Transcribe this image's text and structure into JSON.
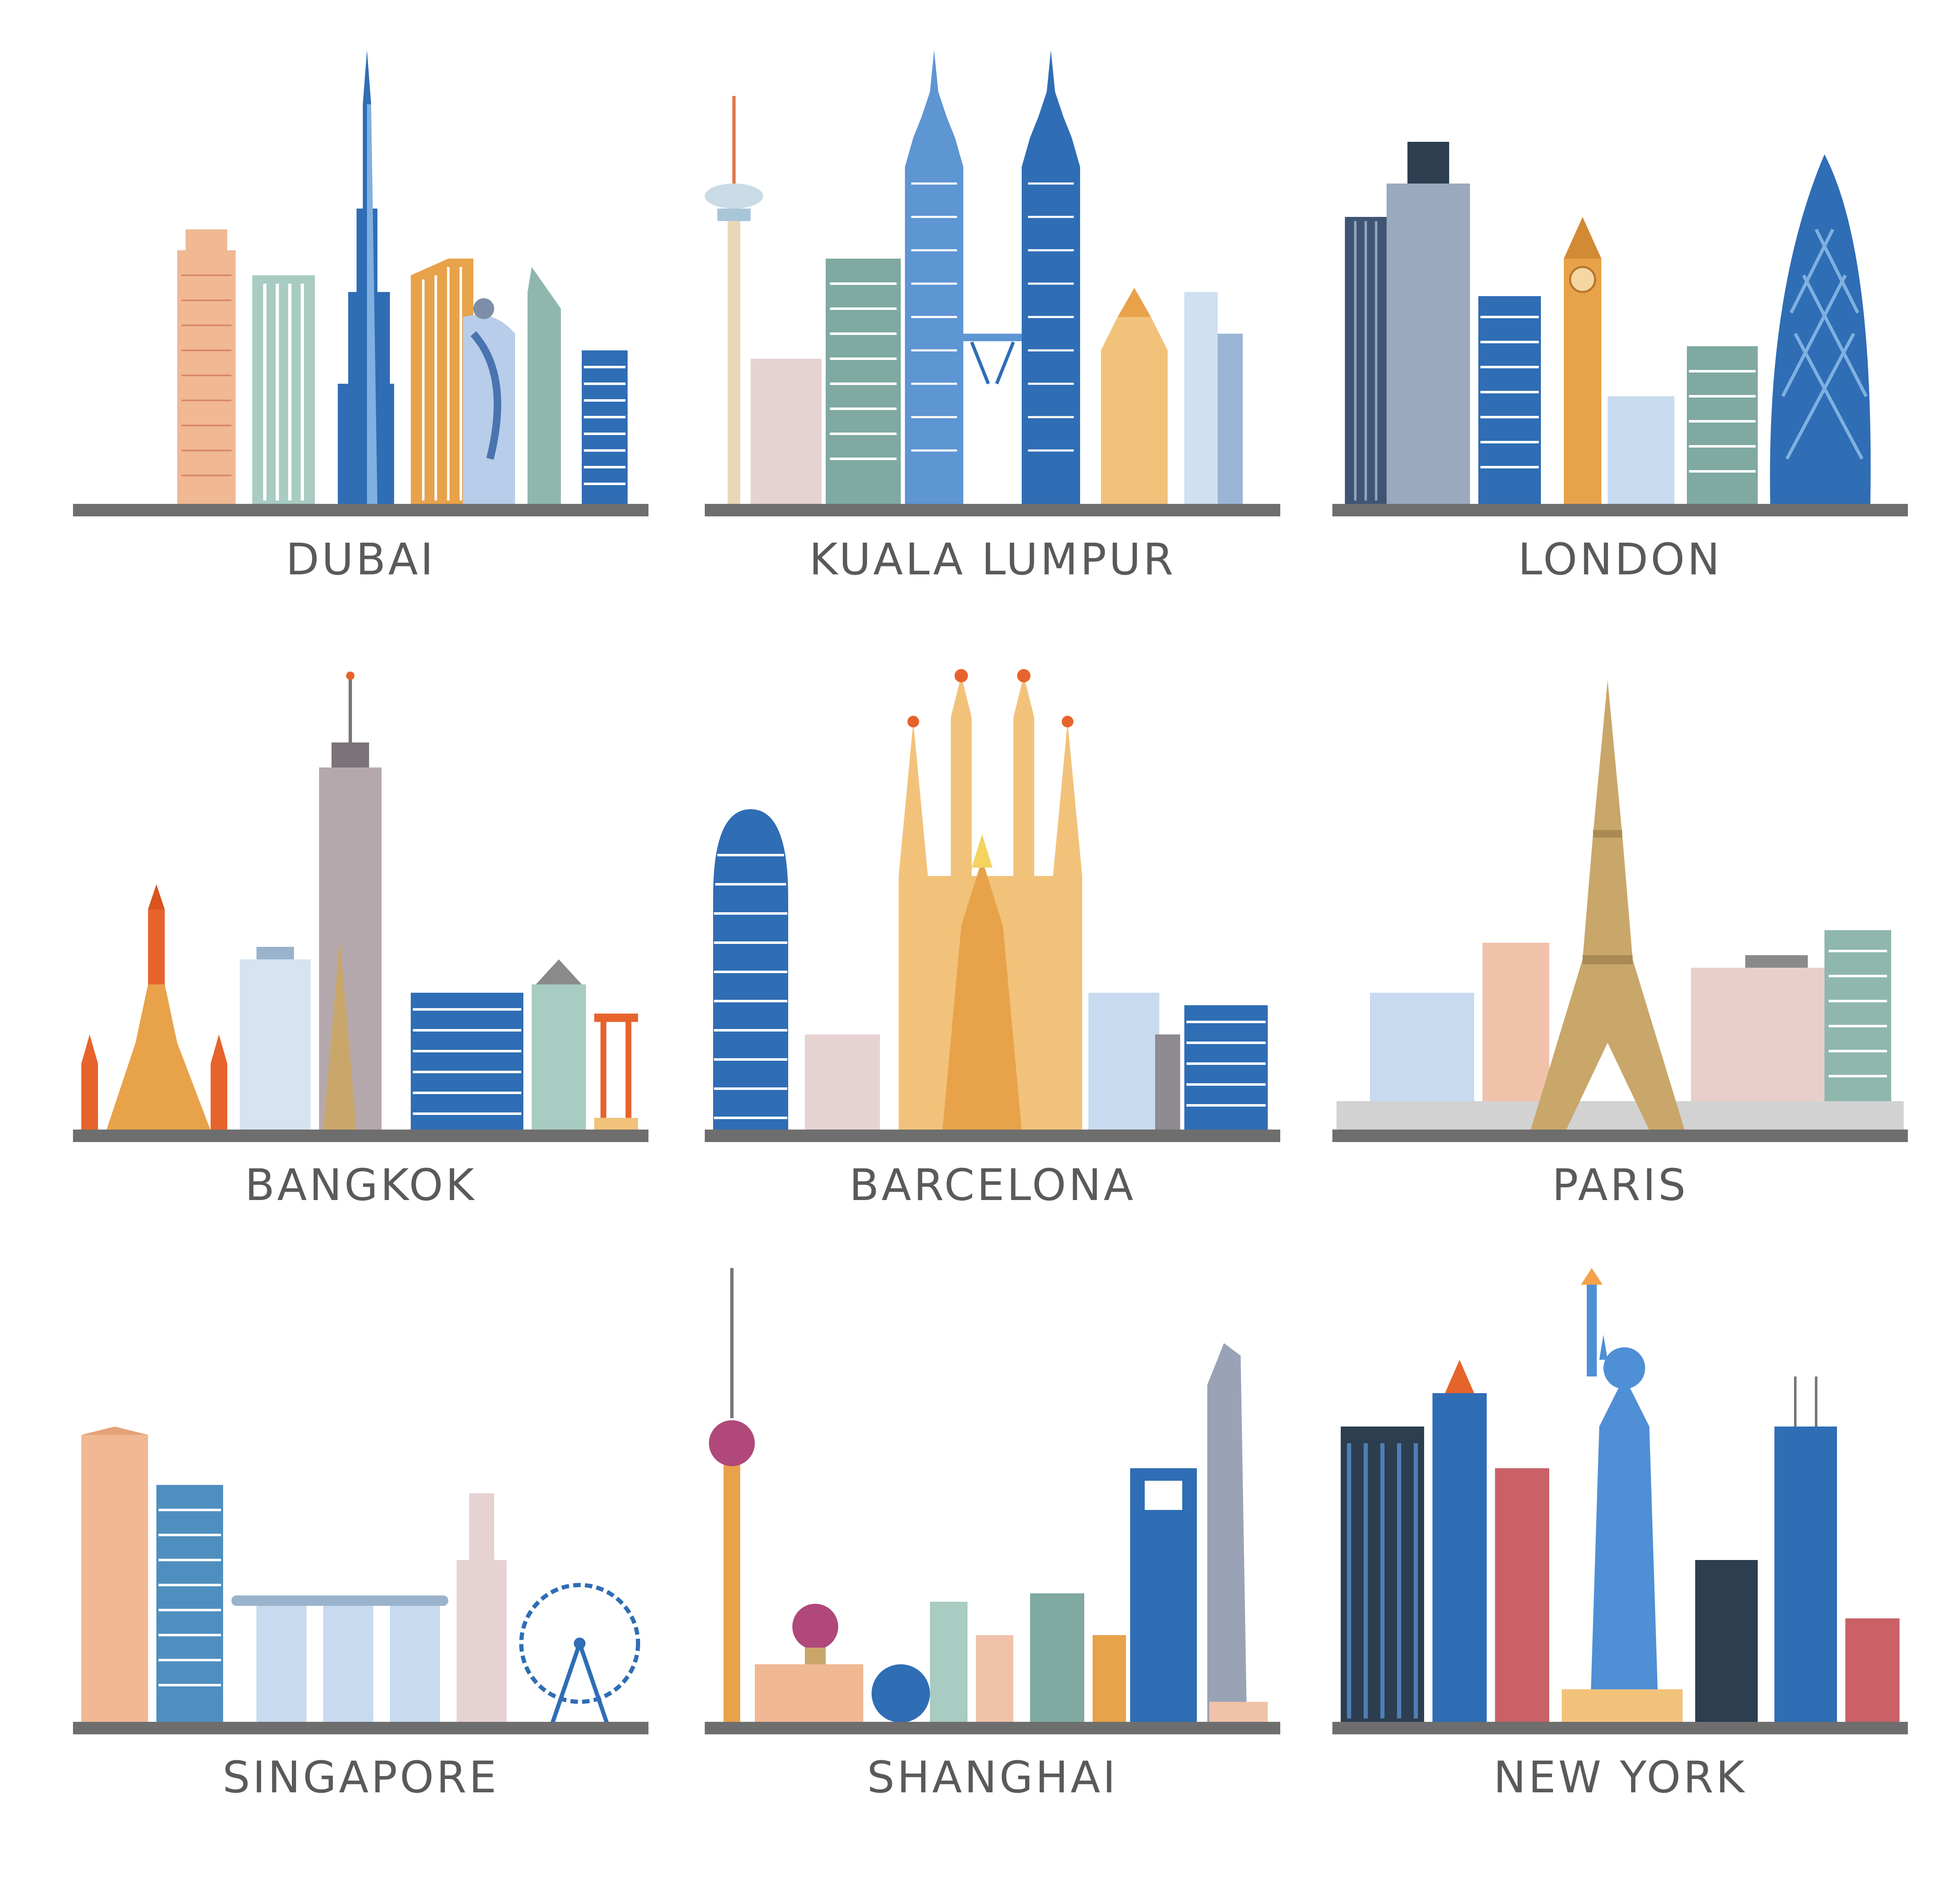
{
  "cities": [
    {
      "label": "DUBAI"
    },
    {
      "label": "KUALA  LUMPUR"
    },
    {
      "label": "LONDON"
    },
    {
      "label": "BANGKOK"
    },
    {
      "label": "BARCELONA"
    },
    {
      "label": "PARIS"
    },
    {
      "label": "SINGAPORE"
    },
    {
      "label": "SHANGHAI"
    },
    {
      "label": "NEW YORK"
    }
  ],
  "palette": {
    "ground": "#6e6e6e",
    "label_text": "#5a5a5a",
    "blue": "#2f6db5",
    "light_blue": "#a9c6e8",
    "teal": "#7fa9a1",
    "orange": "#e8a24a",
    "peach": "#f0b893",
    "grey": "#8e8a8f"
  }
}
